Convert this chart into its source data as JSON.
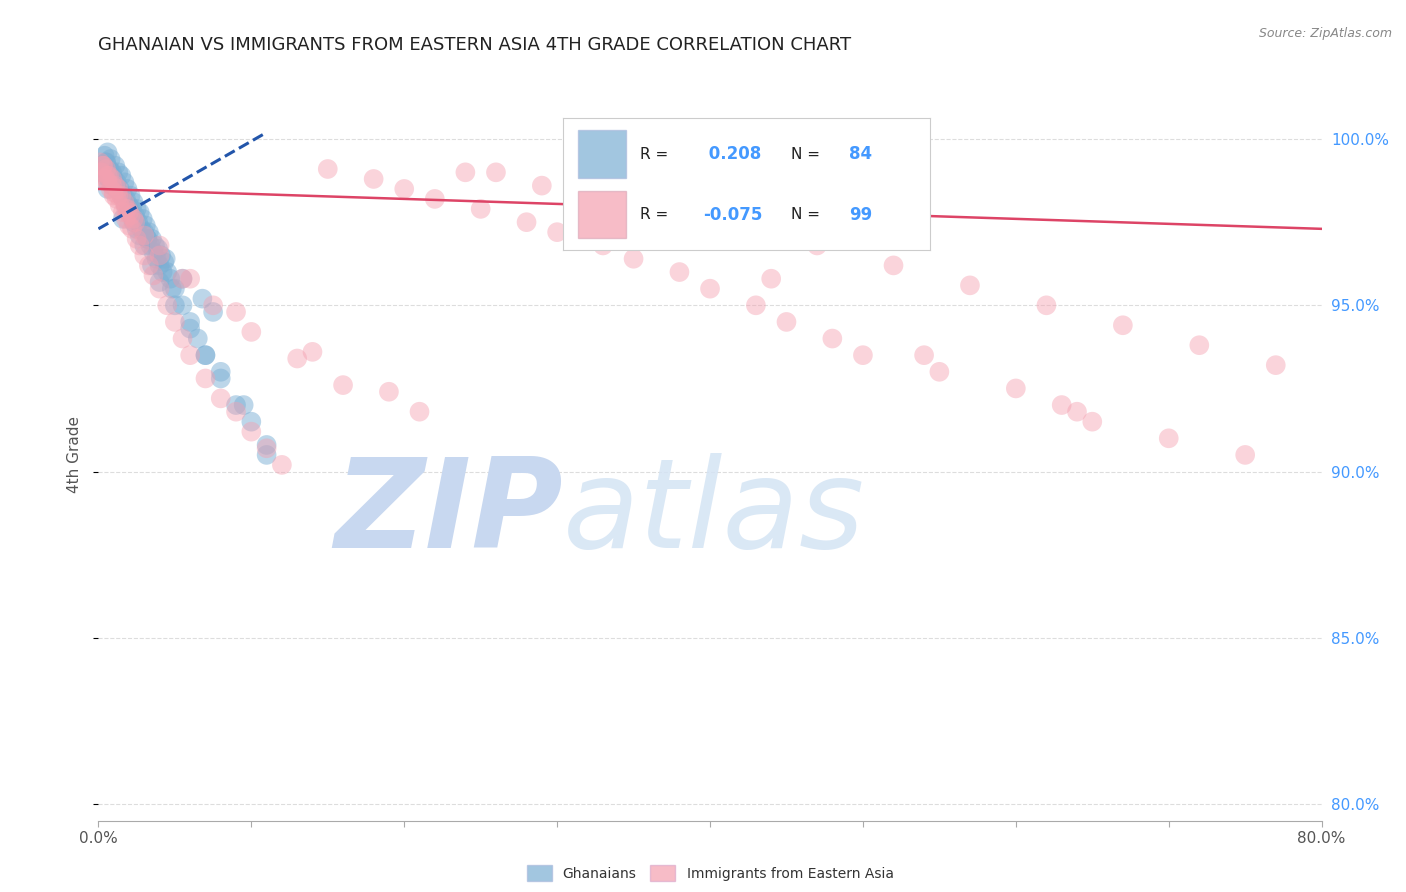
{
  "title": "GHANAIAN VS IMMIGRANTS FROM EASTERN ASIA 4TH GRADE CORRELATION CHART",
  "source_text": "Source: ZipAtlas.com",
  "ylabel": "4th Grade",
  "x_tick_labels": [
    "0.0%",
    "",
    "",
    "",
    "",
    "",
    "",
    "",
    "80.0%"
  ],
  "x_tick_vals": [
    0.0,
    10.0,
    20.0,
    30.0,
    40.0,
    50.0,
    60.0,
    70.0,
    80.0
  ],
  "y_right_labels": [
    "80.0%",
    "85.0%",
    "90.0%",
    "95.0%",
    "100.0%"
  ],
  "y_right_vals": [
    80.0,
    85.0,
    90.0,
    95.0,
    100.0
  ],
  "legend_labels": [
    "Ghanaians",
    "Immigrants from Eastern Asia"
  ],
  "R_blue": 0.208,
  "N_blue": 84,
  "R_pink": -0.075,
  "N_pink": 99,
  "blue_color": "#7bafd4",
  "pink_color": "#f4a0b0",
  "blue_edge_color": "#5588bb",
  "pink_edge_color": "#e07090",
  "blue_line_color": "#2255aa",
  "pink_line_color": "#dd4466",
  "watermark_zip": "ZIP",
  "watermark_atlas": "atlas",
  "watermark_color": "#c8d8f0",
  "background_color": "#ffffff",
  "blue_scatter_x": [
    0.2,
    0.3,
    0.4,
    0.5,
    0.6,
    0.7,
    0.8,
    0.9,
    1.0,
    1.1,
    1.2,
    1.3,
    1.4,
    1.5,
    1.6,
    1.7,
    1.8,
    1.9,
    2.0,
    2.1,
    2.2,
    2.3,
    2.4,
    2.5,
    2.6,
    2.7,
    2.8,
    2.9,
    3.0,
    3.1,
    3.2,
    3.3,
    3.4,
    3.5,
    3.6,
    3.7,
    3.8,
    3.9,
    4.0,
    4.1,
    4.2,
    4.3,
    4.5,
    4.7,
    5.0,
    5.5,
    6.0,
    6.5,
    7.0,
    8.0,
    9.0,
    10.0,
    11.0,
    0.5,
    0.6,
    0.8,
    1.0,
    1.5,
    2.0,
    2.5,
    3.0,
    3.5,
    4.0,
    5.0,
    6.0,
    7.0,
    8.0,
    9.5,
    11.0,
    0.3,
    0.7,
    1.2,
    1.8,
    2.3,
    3.2,
    4.4,
    5.5,
    6.8,
    7.5,
    0.4,
    0.9,
    1.6,
    2.7,
    4.8
  ],
  "blue_scatter_y": [
    99.0,
    99.2,
    99.5,
    99.3,
    99.6,
    99.1,
    99.4,
    99.0,
    98.8,
    99.2,
    98.7,
    99.0,
    98.5,
    98.9,
    98.3,
    98.7,
    98.2,
    98.5,
    98.0,
    98.3,
    97.9,
    98.1,
    97.7,
    97.9,
    97.5,
    97.8,
    97.3,
    97.6,
    97.2,
    97.4,
    97.0,
    97.2,
    96.8,
    97.0,
    96.6,
    96.8,
    96.4,
    96.7,
    96.2,
    96.5,
    96.0,
    96.3,
    96.0,
    95.8,
    95.5,
    95.0,
    94.5,
    94.0,
    93.5,
    93.0,
    92.0,
    91.5,
    90.5,
    99.3,
    98.5,
    99.0,
    98.6,
    98.3,
    97.8,
    97.3,
    96.8,
    96.2,
    95.7,
    95.0,
    94.3,
    93.5,
    92.8,
    92.0,
    90.8,
    99.1,
    98.8,
    98.5,
    98.0,
    97.5,
    97.0,
    96.4,
    95.8,
    95.2,
    94.8,
    98.9,
    98.6,
    97.6,
    97.1,
    95.5
  ],
  "pink_scatter_x": [
    0.1,
    0.2,
    0.3,
    0.4,
    0.5,
    0.6,
    0.7,
    0.8,
    0.9,
    1.0,
    1.1,
    1.2,
    1.3,
    1.4,
    1.5,
    1.6,
    1.7,
    1.8,
    1.9,
    2.0,
    2.1,
    2.2,
    2.3,
    2.5,
    2.7,
    3.0,
    3.3,
    3.6,
    4.0,
    4.5,
    5.0,
    5.5,
    6.0,
    7.0,
    8.0,
    9.0,
    10.0,
    11.0,
    12.0,
    15.0,
    18.0,
    20.0,
    22.0,
    25.0,
    28.0,
    30.0,
    33.0,
    35.0,
    38.0,
    40.0,
    43.0,
    45.0,
    48.0,
    50.0,
    55.0,
    60.0,
    63.0,
    65.0,
    70.0,
    75.0,
    0.3,
    0.6,
    0.9,
    1.3,
    1.8,
    2.4,
    3.0,
    4.0,
    5.5,
    7.5,
    10.0,
    13.0,
    16.0,
    21.0,
    26.0,
    32.0,
    37.0,
    42.0,
    47.0,
    52.0,
    57.0,
    62.0,
    67.0,
    72.0,
    77.0,
    0.5,
    1.0,
    2.0,
    4.0,
    6.0,
    9.0,
    14.0,
    19.0,
    24.0,
    29.0,
    36.0,
    44.0,
    54.0,
    64.0
  ],
  "pink_scatter_y": [
    99.3,
    99.0,
    99.2,
    98.8,
    99.1,
    98.7,
    98.9,
    98.5,
    98.8,
    98.3,
    98.6,
    98.2,
    98.5,
    98.0,
    98.3,
    97.8,
    98.1,
    97.6,
    97.9,
    97.4,
    97.7,
    97.3,
    97.6,
    97.0,
    96.8,
    96.5,
    96.2,
    95.9,
    95.5,
    95.0,
    94.5,
    94.0,
    93.5,
    92.8,
    92.2,
    91.8,
    91.2,
    90.7,
    90.2,
    99.1,
    98.8,
    98.5,
    98.2,
    97.9,
    97.5,
    97.2,
    96.8,
    96.4,
    96.0,
    95.5,
    95.0,
    94.5,
    94.0,
    93.5,
    93.0,
    92.5,
    92.0,
    91.5,
    91.0,
    90.5,
    99.2,
    98.9,
    98.6,
    98.3,
    97.9,
    97.5,
    97.1,
    96.5,
    95.8,
    95.0,
    94.2,
    93.4,
    92.6,
    91.8,
    99.0,
    98.5,
    98.0,
    97.4,
    96.8,
    96.2,
    95.6,
    95.0,
    94.4,
    93.8,
    93.2,
    98.8,
    98.4,
    97.8,
    96.8,
    95.8,
    94.8,
    93.6,
    92.4,
    99.0,
    98.6,
    98.0,
    95.8,
    93.5,
    91.8
  ],
  "blue_trend_x": [
    0.0,
    11.0
  ],
  "blue_trend_y": [
    97.3,
    100.2
  ],
  "pink_trend_x": [
    0.0,
    80.0
  ],
  "pink_trend_y": [
    98.5,
    97.3
  ],
  "xlim": [
    0.0,
    80.0
  ],
  "ylim": [
    79.5,
    101.5
  ],
  "grid_color": "#dddddd",
  "title_color": "#222222",
  "title_fontsize": 13,
  "axis_label_color": "#555555",
  "tick_color": "#555555",
  "right_axis_color": "#4499ff"
}
